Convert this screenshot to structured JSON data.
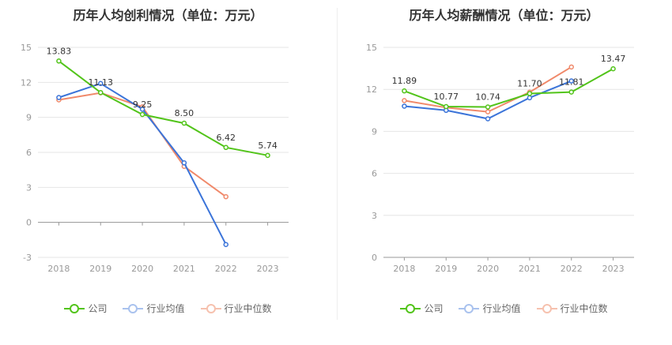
{
  "colors": {
    "company": "#52c41a",
    "industry_avg": "#3b74d9",
    "industry_median": "#f0896a",
    "grid": "#e6e6e6",
    "axis_text": "#999999",
    "label_text": "#333333"
  },
  "legend": {
    "company": "公司",
    "industry_avg": "行业均值",
    "industry_median": "行业中位数"
  },
  "chart_data": [
    {
      "type": "line",
      "title": "历年人均创利情况（单位：万元）",
      "categories": [
        "2018",
        "2019",
        "2020",
        "2021",
        "2022",
        "2023"
      ],
      "ylim": [
        -3,
        15
      ],
      "yticks": [
        -3,
        0,
        3,
        6,
        9,
        12,
        15
      ],
      "series": [
        {
          "name": "公司",
          "key": "company",
          "values": [
            13.83,
            11.13,
            9.25,
            8.5,
            6.42,
            5.74
          ],
          "labels": [
            "13.83",
            "11.13",
            "9.25",
            "8.50",
            "6.42",
            "5.74"
          ]
        },
        {
          "name": "行业均值",
          "key": "industry_avg",
          "values": [
            10.7,
            11.9,
            9.7,
            5.1,
            -1.9,
            null
          ]
        },
        {
          "name": "行业中位数",
          "key": "industry_median",
          "values": [
            10.5,
            11.1,
            9.9,
            4.8,
            2.2,
            null
          ]
        }
      ]
    },
    {
      "type": "line",
      "title": "历年人均薪酬情况（单位：万元）",
      "categories": [
        "2018",
        "2019",
        "2020",
        "2021",
        "2022",
        "2023"
      ],
      "ylim": [
        0,
        15
      ],
      "yticks": [
        0,
        3,
        6,
        9,
        12,
        15
      ],
      "series": [
        {
          "name": "公司",
          "key": "company",
          "values": [
            11.89,
            10.77,
            10.74,
            11.7,
            11.81,
            13.47
          ],
          "labels": [
            "11.89",
            "10.77",
            "10.74",
            "11.70",
            "11.81",
            "13.47"
          ]
        },
        {
          "name": "行业均值",
          "key": "industry_avg",
          "values": [
            10.8,
            10.5,
            9.9,
            11.4,
            12.6,
            null
          ]
        },
        {
          "name": "行业中位数",
          "key": "industry_median",
          "values": [
            11.2,
            10.7,
            10.4,
            11.8,
            13.6,
            null
          ]
        }
      ]
    }
  ]
}
